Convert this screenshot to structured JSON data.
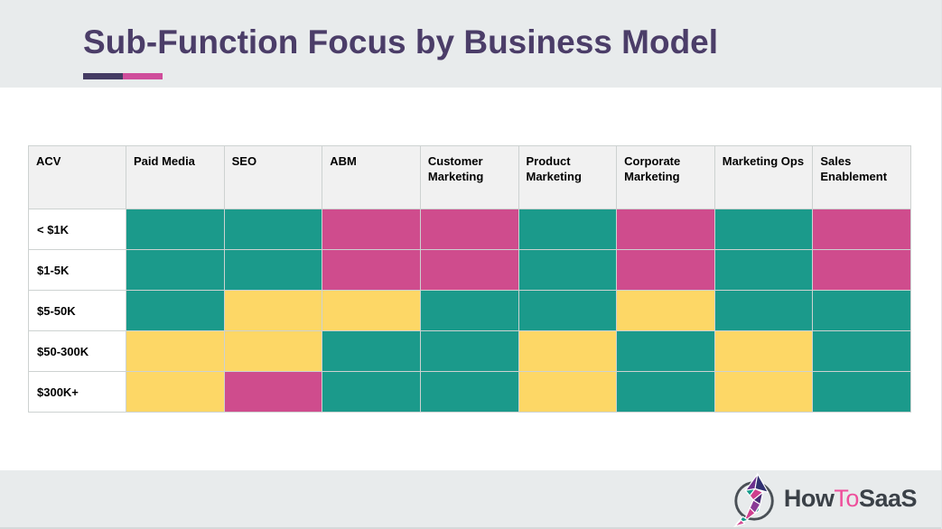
{
  "slide": {
    "title": "Sub-Function Focus by Business Model"
  },
  "accent": {
    "title_color": "#4b3d68",
    "underline_purple": "#443b63",
    "underline_pink": "#cf4d9b",
    "band_gray": "#e8ebec"
  },
  "table": {
    "columns": [
      "ACV",
      "Paid Media",
      "SEO",
      "ABM",
      "Customer Marketing",
      "Product Marketing",
      "Corporate Marketing",
      "Marketing Ops",
      "Sales Enablement"
    ],
    "rows": [
      {
        "label": "< $1K",
        "cells": [
          "teal",
          "teal",
          "pink",
          "pink",
          "teal",
          "pink",
          "teal",
          "pink"
        ]
      },
      {
        "label": "$1-5K",
        "cells": [
          "teal",
          "teal",
          "pink",
          "pink",
          "teal",
          "pink",
          "teal",
          "pink"
        ]
      },
      {
        "label": "$5-50K",
        "cells": [
          "teal",
          "yellow",
          "yellow",
          "teal",
          "teal",
          "yellow",
          "teal",
          "teal"
        ]
      },
      {
        "label": "$50-300K",
        "cells": [
          "yellow",
          "yellow",
          "teal",
          "teal",
          "yellow",
          "teal",
          "yellow",
          "teal"
        ]
      },
      {
        "label": "$300K+",
        "cells": [
          "yellow",
          "pink",
          "teal",
          "teal",
          "yellow",
          "teal",
          "yellow",
          "teal"
        ]
      }
    ],
    "cell_colors": {
      "teal": "#1b9a8b",
      "pink": "#cf4c8d",
      "yellow": "#fdd766"
    }
  },
  "footer": {
    "logo": {
      "parts": [
        {
          "text": "How",
          "color": "#3b4148"
        },
        {
          "text": "To",
          "color": "#ee4f9b"
        },
        {
          "text": "SaaS",
          "color": "#3b4148"
        }
      ]
    }
  },
  "chart_data": {
    "type": "heatmap",
    "title": "Sub-Function Focus by Business Model",
    "x_categories": [
      "Paid Media",
      "SEO",
      "ABM",
      "Customer Marketing",
      "Product Marketing",
      "Corporate Marketing",
      "Marketing Ops",
      "Sales Enablement"
    ],
    "y_categories": [
      "< $1K",
      "$1-5K",
      "$5-50K",
      "$50-300K",
      "$300K+"
    ],
    "values": [
      [
        "teal",
        "teal",
        "pink",
        "pink",
        "teal",
        "pink",
        "teal",
        "pink"
      ],
      [
        "teal",
        "teal",
        "pink",
        "pink",
        "teal",
        "pink",
        "teal",
        "pink"
      ],
      [
        "teal",
        "yellow",
        "yellow",
        "teal",
        "teal",
        "yellow",
        "teal",
        "teal"
      ],
      [
        "yellow",
        "yellow",
        "teal",
        "teal",
        "yellow",
        "teal",
        "yellow",
        "teal"
      ],
      [
        "yellow",
        "pink",
        "teal",
        "teal",
        "yellow",
        "teal",
        "yellow",
        "teal"
      ]
    ],
    "color_key": {
      "teal": "#1b9a8b",
      "yellow": "#fdd766",
      "pink": "#cf4c8d"
    },
    "legend_position": "none",
    "grid": true
  }
}
